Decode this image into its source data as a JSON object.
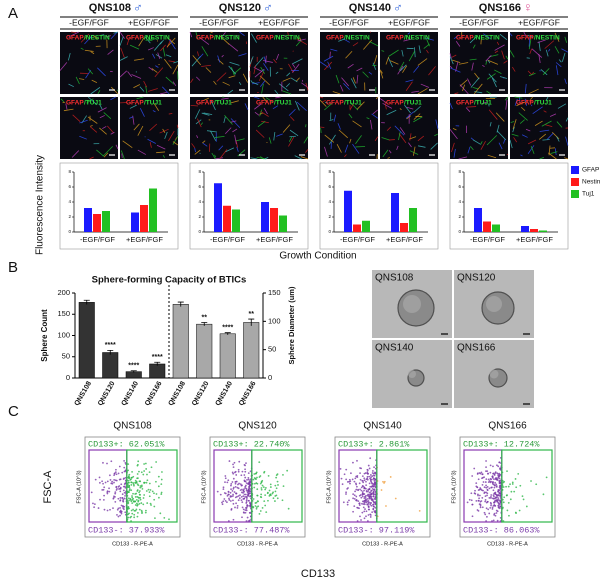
{
  "panel_labels": [
    "A",
    "B",
    "C"
  ],
  "panel_a": {
    "columns": [
      {
        "name": "QNS108",
        "sex": "♂",
        "sex_color": "#2b5fd9"
      },
      {
        "name": "QNS120",
        "sex": "♂",
        "sex_color": "#2b5fd9"
      },
      {
        "name": "QNS140",
        "sex": "♂",
        "sex_color": "#2b5fd9"
      },
      {
        "name": "QNS166",
        "sex": "♀",
        "sex_color": "#e05a9a"
      }
    ],
    "conditions": [
      "-EGF/FGF",
      "+EGF/FGF"
    ],
    "stains": [
      [
        "GFAP",
        "/NESTIN"
      ],
      [
        "GFAP",
        "/TUJ1"
      ]
    ]
  },
  "chart_data": [
    {
      "type": "grouped-bar-panels",
      "y_label": "Fluorescence Intensity",
      "x_label": "Growth Condition",
      "categories": [
        "-EGF/FGF",
        "+EGF/FGF"
      ],
      "legend": "right",
      "series": [
        {
          "name": "GFAP",
          "color": "#1a1aff"
        },
        {
          "name": "Nestin",
          "color": "#ff1a1a"
        },
        {
          "name": "Tuj1",
          "color": "#22c022"
        }
      ],
      "ylim": [
        0,
        8
      ],
      "yticks": [
        0,
        2,
        4,
        6,
        8
      ],
      "panels": [
        {
          "values": [
            [
              3.2,
              2.6
            ],
            [
              2.4,
              3.6
            ],
            [
              2.8,
              5.8
            ]
          ]
        },
        {
          "values": [
            [
              6.5,
              4.0
            ],
            [
              3.5,
              3.2
            ],
            [
              3.0,
              2.2
            ]
          ]
        },
        {
          "values": [
            [
              5.5,
              5.2
            ],
            [
              1.0,
              1.2
            ],
            [
              1.5,
              3.2
            ]
          ]
        },
        {
          "values": [
            [
              3.2,
              0.8
            ],
            [
              1.4,
              0.4
            ],
            [
              1.0,
              0.2
            ]
          ]
        }
      ]
    },
    {
      "type": "dual-axis-bar",
      "title": "Sphere-forming Capacity of BTICs",
      "y_label": "Sphere  Count",
      "y2_label": "Sphere Diameter (um)",
      "categories": [
        "QNS108",
        "QNS120",
        "QNS140",
        "QNS166"
      ],
      "ylim": [
        0,
        200
      ],
      "yticks": [
        0,
        50,
        100,
        150,
        200
      ],
      "y2lim": [
        0,
        150
      ],
      "y2ticks": [
        0,
        50,
        100,
        150
      ],
      "series": [
        {
          "color": "#333333",
          "values": [
            178,
            60,
            15,
            33
          ],
          "errors": [
            5,
            5,
            2,
            4
          ],
          "significance": [
            null,
            "****",
            "****",
            "****"
          ]
        },
        {
          "axis": "y2",
          "color": "#a8a8a8",
          "values": [
            130,
            95,
            78,
            98
          ],
          "errors": [
            4,
            3,
            2,
            6
          ],
          "significance": [
            null,
            "**",
            "****",
            "**"
          ]
        }
      ]
    }
  ],
  "panel_b_images": [
    "QNS108",
    "QNS120",
    "QNS140",
    "QNS166"
  ],
  "panel_c": {
    "x_label": "CD133",
    "y_label": "FSC-A",
    "plot_x_label": "CD133 - R-PE-A",
    "plot_y_label": "FSC-A (10^3)",
    "plots": [
      {
        "title": "QNS108",
        "positive": "CD133+: 62.051%",
        "negative": "CD133-: 37.933%"
      },
      {
        "title": "QNS120",
        "positive": "CD133+: 22.740%",
        "negative": "CD133-: 77.487%"
      },
      {
        "title": "QNS140",
        "positive": "CD133+: 2.861%",
        "negative": "CD133-: 97.119%"
      },
      {
        "title": "QNS166",
        "positive": "CD133+: 12.724%",
        "negative": "CD133-: 86.063%"
      }
    ]
  }
}
